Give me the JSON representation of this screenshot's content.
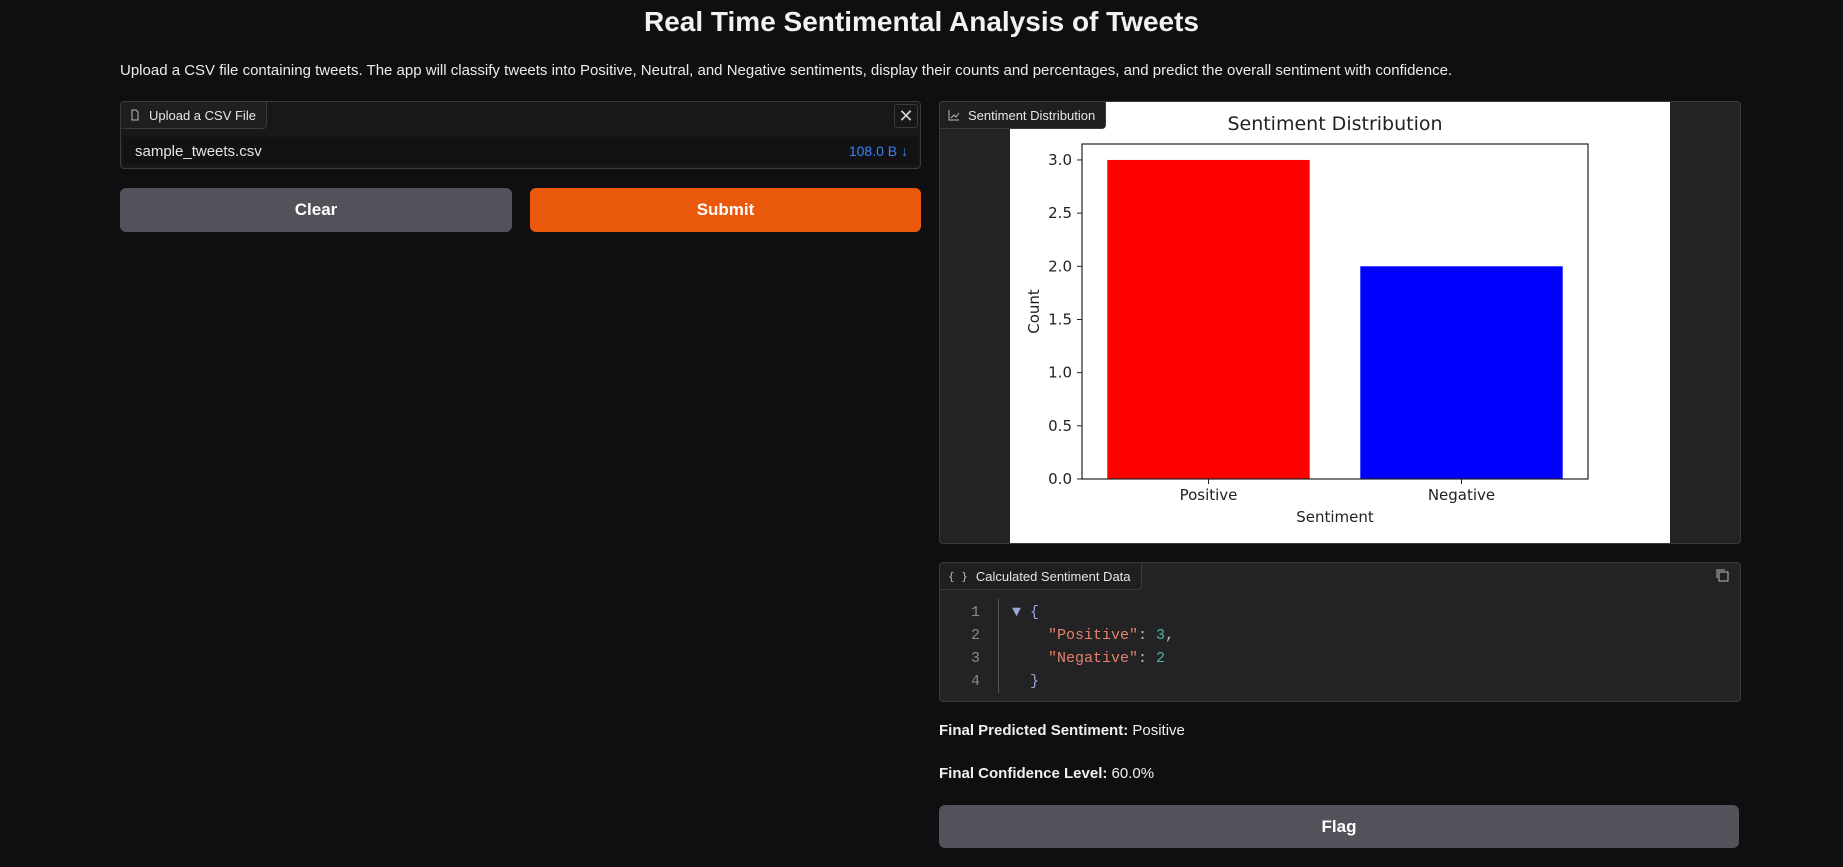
{
  "page": {
    "title": "Real Time Sentimental Analysis of Tweets",
    "description": "Upload a CSV file containing tweets. The app will classify tweets into Positive, Neutral, and Negative sentiments, display their counts and percentages, and predict the overall sentiment with confidence."
  },
  "upload": {
    "label": "Upload a CSV File",
    "file_name": "sample_tweets.csv",
    "file_size": "108.0 B ↓",
    "close_icon": "close-icon"
  },
  "buttons": {
    "clear": "Clear",
    "submit": "Submit",
    "flag": "Flag"
  },
  "plot": {
    "label": "Sentiment Distribution"
  },
  "chart_data": {
    "type": "bar",
    "title": "Sentiment Distribution",
    "xlabel": "Sentiment",
    "ylabel": "Count",
    "categories": [
      "Positive",
      "Negative"
    ],
    "values": [
      3,
      2
    ],
    "colors": [
      "#ff0000",
      "#0000ff"
    ],
    "ylim": [
      0,
      3.15
    ],
    "yticks": [
      "0.0",
      "0.5",
      "1.0",
      "1.5",
      "2.0",
      "2.5",
      "3.0"
    ],
    "grid": false
  },
  "json_panel": {
    "label": "Calculated Sentiment Data",
    "lines": [
      {
        "num": "1",
        "text": "▼ {"
      },
      {
        "num": "2",
        "key": "\"Positive\"",
        "sep": ": ",
        "val": "3",
        "end": ","
      },
      {
        "num": "3",
        "key": "\"Negative\"",
        "sep": ": ",
        "val": "2",
        "end": ""
      },
      {
        "num": "4",
        "text": "}"
      }
    ]
  },
  "result": {
    "sentiment_label": "Final Predicted Sentiment:",
    "sentiment_value": "Positive",
    "confidence_label": "Final Confidence Level:",
    "confidence_value": "60.0%"
  },
  "colors": {
    "accent": "#ea580c",
    "secondary_button": "#52525b",
    "link": "#3b82f6"
  }
}
